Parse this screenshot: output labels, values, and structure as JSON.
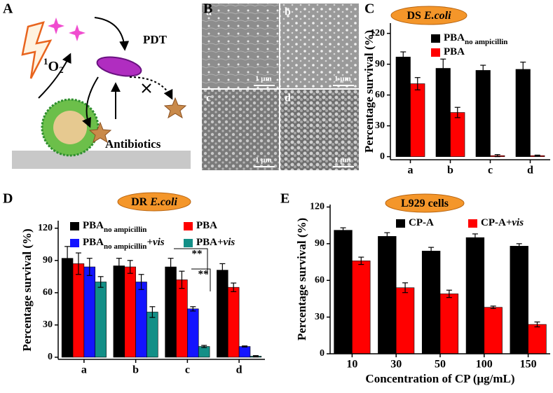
{
  "figure": {
    "panels": [
      "A",
      "B",
      "C",
      "D",
      "E"
    ],
    "scheme": {
      "pdt": "PDT",
      "singlet_oxygen": {
        "sup": "1",
        "base": "O",
        "sub": "2"
      },
      "antibiotics": "Antibiotics"
    },
    "sem": {
      "images": [
        "a",
        "b",
        "c",
        "d"
      ],
      "scale_bar": "1 μm"
    }
  },
  "chart_data": [
    {
      "type": "bar",
      "title": "DS",
      "title_species": "E.coli",
      "ylabel": "Percentage survival (%)",
      "categories": [
        "a",
        "b",
        "c",
        "d"
      ],
      "ylim": [
        -3,
        130
      ],
      "yticks": [
        0,
        30,
        60,
        90,
        120
      ],
      "legend": "top-right",
      "series": [
        {
          "name": "PBA",
          "subscript": "no ampicillin",
          "color": "#000000",
          "values": [
            97,
            86,
            84,
            85
          ],
          "errors": [
            5,
            9,
            5,
            7
          ]
        },
        {
          "name": "PBA",
          "color": "#ff0000",
          "values": [
            71,
            43,
            1,
            1
          ],
          "errors": [
            6,
            5,
            1,
            0.5
          ]
        }
      ]
    },
    {
      "type": "bar",
      "title": "DR",
      "title_species": "E.coli",
      "ylabel": "Percentage survival (%)",
      "categories": [
        "a",
        "b",
        "c",
        "d"
      ],
      "ylim": [
        -2,
        127
      ],
      "yticks": [
        0,
        30,
        60,
        90,
        120
      ],
      "legend": "top",
      "annotations": [
        "**",
        "**"
      ],
      "series": [
        {
          "name": "PBA",
          "subscript": "no ampicillin",
          "color": "#000000",
          "values": [
            92,
            85,
            84,
            81
          ],
          "errors": [
            11,
            7,
            8,
            6
          ]
        },
        {
          "name": "PBA",
          "color": "#ff0000",
          "values": [
            87,
            84,
            72,
            65
          ],
          "errors": [
            10,
            6,
            8,
            4
          ]
        },
        {
          "name": "PBA",
          "subscript": "no ampicillin",
          "suffix": "+vis",
          "color": "#1414ff",
          "values": [
            84,
            70,
            45,
            10
          ],
          "errors": [
            8,
            7,
            2,
            0.5
          ]
        },
        {
          "name": "PBA",
          "suffix": "+vis",
          "color": "#138f87",
          "values": [
            70,
            42,
            10,
            1
          ],
          "errors": [
            5,
            5,
            1,
            0.5
          ]
        }
      ]
    },
    {
      "type": "bar",
      "title": "L929 cells",
      "ylabel": "Percentage survival (%)",
      "xlabel": "Concentration of CP (μg/mL)",
      "categories": [
        "10",
        "30",
        "50",
        "100",
        "150"
      ],
      "ylim": [
        0,
        122
      ],
      "yticks": [
        0,
        30,
        60,
        90,
        120
      ],
      "legend": "top",
      "series": [
        {
          "name": "CP-A",
          "color": "#000000",
          "values": [
            101,
            96,
            84,
            95,
            88
          ],
          "errors": [
            2,
            3,
            3,
            3,
            2
          ]
        },
        {
          "name": "CP-A",
          "suffix": "+vis",
          "color": "#ff0000",
          "values": [
            76,
            54,
            49,
            38,
            24
          ],
          "errors": [
            3,
            4,
            3,
            1,
            2
          ]
        }
      ]
    }
  ]
}
